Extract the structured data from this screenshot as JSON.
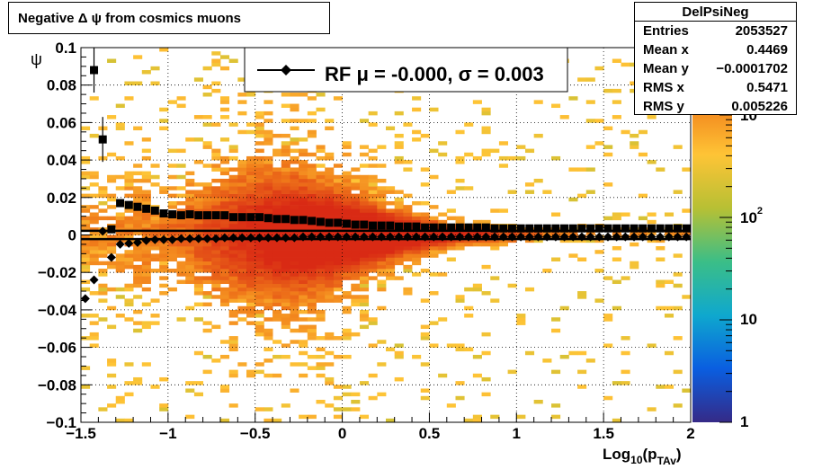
{
  "title": "Negative Δ ψ from cosmics muons",
  "stats": {
    "name": "DelPsiNeg",
    "rows": [
      {
        "label": "Entries",
        "value": "2053527"
      },
      {
        "label": "Mean x",
        "value": "0.4469"
      },
      {
        "label": "Mean y",
        "value": "−0.0001702"
      },
      {
        "label": "RMS x",
        "value": "0.5471"
      },
      {
        "label": "RMS y",
        "value": "0.005226"
      }
    ]
  },
  "legend": {
    "text": "RF μ = -0.000, σ =   0.003"
  },
  "colorbar": {
    "labels": [
      "1",
      "10",
      "10",
      "10"
    ],
    "exponents": [
      "",
      "",
      "2",
      "3"
    ],
    "colormap": [
      "#352a87",
      "#0a5ee0",
      "#0fa8ce",
      "#3bbe87",
      "#b7c034",
      "#fec436",
      "#f17e1a",
      "#d92a14"
    ]
  },
  "chart_data": {
    "type": "heatmap",
    "xlabel": "Log",
    "xlabel_sub": "10",
    "xlabel_rest": "(p",
    "xlabel_sub2": "TAv",
    "xlabel_end": ")",
    "ylabel": "ψ",
    "xlim": [
      -1.5,
      2
    ],
    "ylim": [
      -0.1,
      0.1
    ],
    "zscale": "log",
    "xticks": [
      "−1.5",
      "−1",
      "−0.5",
      "0",
      "0.5",
      "1",
      "1.5",
      "2"
    ],
    "xtick_values": [
      -1.5,
      -1,
      -0.5,
      0,
      0.5,
      1,
      1.5,
      2
    ],
    "yticks": [
      "−0.1",
      "−0.08",
      "−0.06",
      "−0.04",
      "−0.02",
      "0",
      "0.02",
      "0.04",
      "0.06",
      "0.08",
      "0.1"
    ],
    "ytick_values": [
      -0.1,
      -0.08,
      -0.06,
      -0.04,
      -0.02,
      0,
      0.02,
      0.04,
      0.06,
      0.08,
      0.1
    ],
    "grid": true,
    "series": [
      {
        "name": "RF",
        "mean_x": [
          -1.475,
          -1.425,
          -1.375,
          -1.325,
          -1.275,
          -1.225,
          -1.175,
          -1.125,
          -1.075,
          -1.025,
          -0.975,
          -0.925,
          -0.875,
          -0.825,
          -0.775,
          -0.725,
          -0.675,
          -0.625,
          -0.575,
          -0.525,
          -0.475,
          -0.425,
          -0.375,
          -0.325,
          -0.275,
          -0.225,
          -0.175,
          -0.125,
          -0.075,
          -0.025,
          0.025,
          0.075,
          0.125,
          0.175,
          0.225,
          0.275,
          0.325,
          0.375,
          0.425,
          0.475,
          0.525,
          0.575,
          0.625,
          0.675,
          0.725,
          0.775,
          0.825,
          0.875,
          0.925,
          0.975,
          1.025,
          1.075,
          1.125,
          1.175,
          1.225,
          1.275,
          1.325,
          1.375,
          1.425,
          1.475,
          1.525,
          1.575,
          1.625,
          1.675,
          1.725,
          1.775,
          1.825,
          1.875,
          1.925,
          1.975
        ],
        "upper": [
          null,
          0.088,
          0.051,
          0.003,
          0.017,
          0.016,
          0.015,
          0.014,
          0.013,
          0.0115,
          0.011,
          0.0105,
          0.011,
          0.0105,
          0.0105,
          0.0105,
          0.0105,
          0.0095,
          0.0095,
          0.0095,
          0.0095,
          0.009,
          0.0085,
          0.0085,
          0.008,
          0.008,
          0.0075,
          0.007,
          0.0065,
          0.0065,
          0.006,
          0.0055,
          0.0055,
          0.005,
          0.005,
          0.005,
          0.0045,
          0.0045,
          0.0045,
          0.004,
          0.004,
          0.004,
          0.004,
          0.004,
          0.004,
          0.004,
          0.004,
          0.0035,
          0.0035,
          0.0035,
          0.0035,
          0.0035,
          0.0035,
          0.0035,
          0.0035,
          0.0035,
          0.0035,
          0.0035,
          0.0035,
          0.0035,
          0.0035,
          0.0035,
          0.0035,
          0.0035,
          0.0035,
          0.0035,
          0.0035,
          0.0035,
          0.0035,
          0.0035
        ],
        "lower": [
          -0.034,
          -0.024,
          0.002,
          -0.012,
          -0.005,
          -0.0045,
          -0.004,
          -0.003,
          -0.0025,
          -0.0025,
          -0.0025,
          -0.002,
          -0.002,
          -0.002,
          -0.002,
          -0.002,
          -0.0015,
          -0.0015,
          -0.0015,
          -0.0015,
          -0.0015,
          -0.0015,
          -0.0015,
          -0.0015,
          -0.0015,
          -0.001,
          -0.001,
          -0.001,
          -0.001,
          -0.001,
          -0.001,
          -0.001,
          -0.001,
          -0.001,
          -0.001,
          -0.001,
          -0.001,
          -0.001,
          -0.001,
          -0.001,
          -0.001,
          -0.001,
          -0.001,
          -0.001,
          -0.001,
          -0.001,
          -0.001,
          -0.001,
          -0.001,
          -0.001,
          -0.001,
          -0.001,
          -0.001,
          -0.001,
          -0.001,
          -0.001,
          -0.001,
          -0.001,
          -0.001,
          -0.001,
          -0.001,
          -0.001,
          -0.001,
          -0.001,
          -0.001,
          -0.001,
          -0.001,
          -0.001,
          -0.001,
          -0.001
        ]
      }
    ],
    "fit_lines_y": [
      0.0022,
      -0.0022
    ]
  }
}
